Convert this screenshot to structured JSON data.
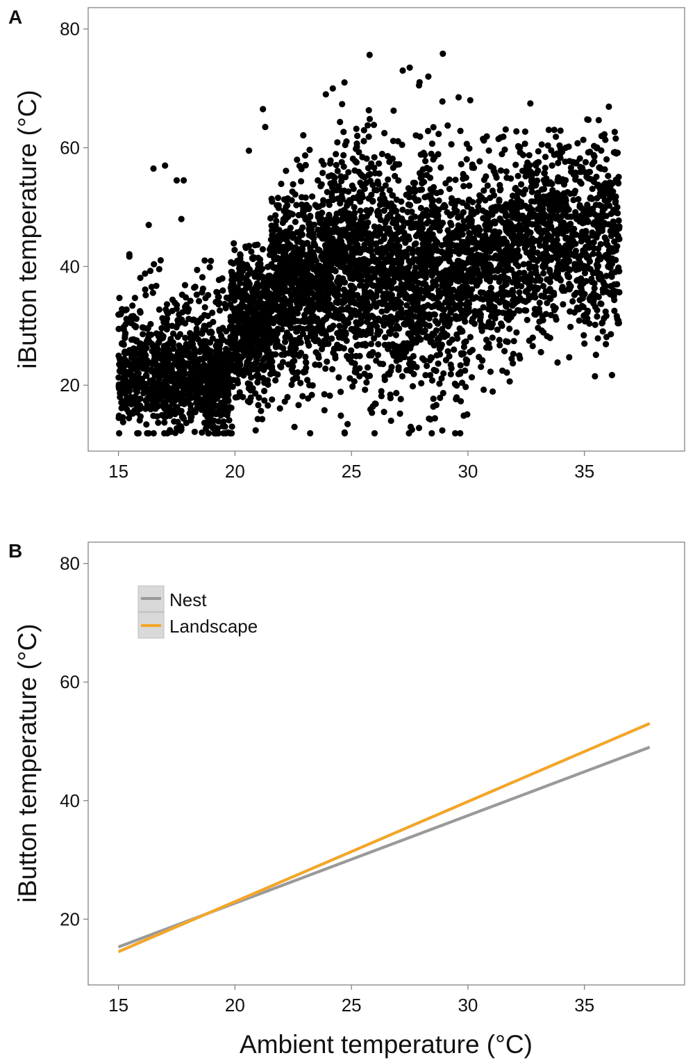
{
  "panels": [
    {
      "letter": "A",
      "ylabel": "iButton temperature (°C)",
      "xlabel": ""
    },
    {
      "letter": "B",
      "ylabel": "iButton temperature (°C)",
      "xlabel": "Ambient temperature (°C)"
    }
  ],
  "colors": {
    "points": "#000000",
    "nest": "#999999",
    "landscape": "#f5a623",
    "frame": "#7a7a7a"
  },
  "chart_data": [
    {
      "type": "scatter",
      "panel": "A",
      "title": "",
      "xlabel": "",
      "ylabel": "iButton temperature (°C)",
      "xlim": [
        13.7,
        39.3
      ],
      "ylim": [
        8.9,
        83.6
      ],
      "xticks": [
        15,
        20,
        25,
        30,
        35
      ],
      "yticks": [
        20,
        40,
        60,
        80
      ],
      "grid": false,
      "point_count_description": "dense cloud",
      "clusters": [
        {
          "x_range": [
            15.0,
            17.5
          ],
          "y_center": 21,
          "y_spread": 4,
          "n": 400
        },
        {
          "x_range": [
            15.0,
            17.5
          ],
          "y_center": 30,
          "y_spread": 5,
          "n": 80
        },
        {
          "x_range": [
            17.5,
            19.8
          ],
          "y_center": 20,
          "y_spread": 4,
          "n": 450
        },
        {
          "x_range": [
            17.5,
            19.8
          ],
          "y_center": 29,
          "y_spread": 5,
          "n": 120
        },
        {
          "x_range": [
            19.8,
            21.5
          ],
          "y_center": 30,
          "y_spread": 6,
          "n": 550
        },
        {
          "x_range": [
            21.5,
            24.0
          ],
          "y_center": 37,
          "y_spread": 8,
          "n": 800
        },
        {
          "x_range": [
            24.0,
            27.0
          ],
          "y_center": 40,
          "y_spread": 10,
          "n": 900
        },
        {
          "x_range": [
            27.0,
            30.0
          ],
          "y_center": 38,
          "y_spread": 10,
          "n": 800
        },
        {
          "x_range": [
            30.0,
            32.0
          ],
          "y_center": 41,
          "y_spread": 8,
          "n": 450
        },
        {
          "x_range": [
            32.0,
            36.5
          ],
          "y_center": 45,
          "y_spread": 8,
          "n": 900
        }
      ],
      "outliers": [
        {
          "x": 16.5,
          "y": 56.5
        },
        {
          "x": 17.0,
          "y": 57.0
        },
        {
          "x": 17.5,
          "y": 54.5
        },
        {
          "x": 17.8,
          "y": 54.5
        },
        {
          "x": 16.3,
          "y": 47.0
        },
        {
          "x": 17.7,
          "y": 48.0
        },
        {
          "x": 18.7,
          "y": 41.0
        },
        {
          "x": 21.2,
          "y": 66.5
        },
        {
          "x": 21.3,
          "y": 63.5
        },
        {
          "x": 20.6,
          "y": 59.5
        },
        {
          "x": 24.7,
          "y": 71.0
        },
        {
          "x": 24.2,
          "y": 70.0
        },
        {
          "x": 23.9,
          "y": 69.0
        },
        {
          "x": 27.2,
          "y": 73.0
        },
        {
          "x": 27.5,
          "y": 73.5
        },
        {
          "x": 28.3,
          "y": 72.0
        },
        {
          "x": 27.9,
          "y": 70.5
        },
        {
          "x": 29.6,
          "y": 68.5
        },
        {
          "x": 30.1,
          "y": 68.0
        },
        {
          "x": 26.4,
          "y": 15.5
        },
        {
          "x": 26.7,
          "y": 14.0
        },
        {
          "x": 27.6,
          "y": 12.5
        },
        {
          "x": 27.9,
          "y": 12.8
        },
        {
          "x": 17.7,
          "y": 12.5
        },
        {
          "x": 19.1,
          "y": 13.0
        },
        {
          "x": 35.0,
          "y": 27.0
        },
        {
          "x": 32.2,
          "y": 25.0
        },
        {
          "x": 36.4,
          "y": 37.0
        }
      ]
    },
    {
      "type": "line",
      "panel": "B",
      "title": "",
      "xlabel": "Ambient temperature (°C)",
      "ylabel": "iButton temperature (°C)",
      "xlim": [
        13.7,
        39.3
      ],
      "ylim": [
        8.9,
        83.6
      ],
      "xticks": [
        15,
        20,
        25,
        30,
        35
      ],
      "yticks": [
        20,
        40,
        60,
        80
      ],
      "grid": false,
      "legend_position": "top-left",
      "series": [
        {
          "name": "Nest",
          "x": [
            15.0,
            37.8
          ],
          "y": [
            15.3,
            49.0
          ],
          "color": "#999999"
        },
        {
          "name": "Landscape",
          "x": [
            15.0,
            37.8
          ],
          "y": [
            14.5,
            53.0
          ],
          "color": "#f5a623"
        }
      ]
    }
  ]
}
